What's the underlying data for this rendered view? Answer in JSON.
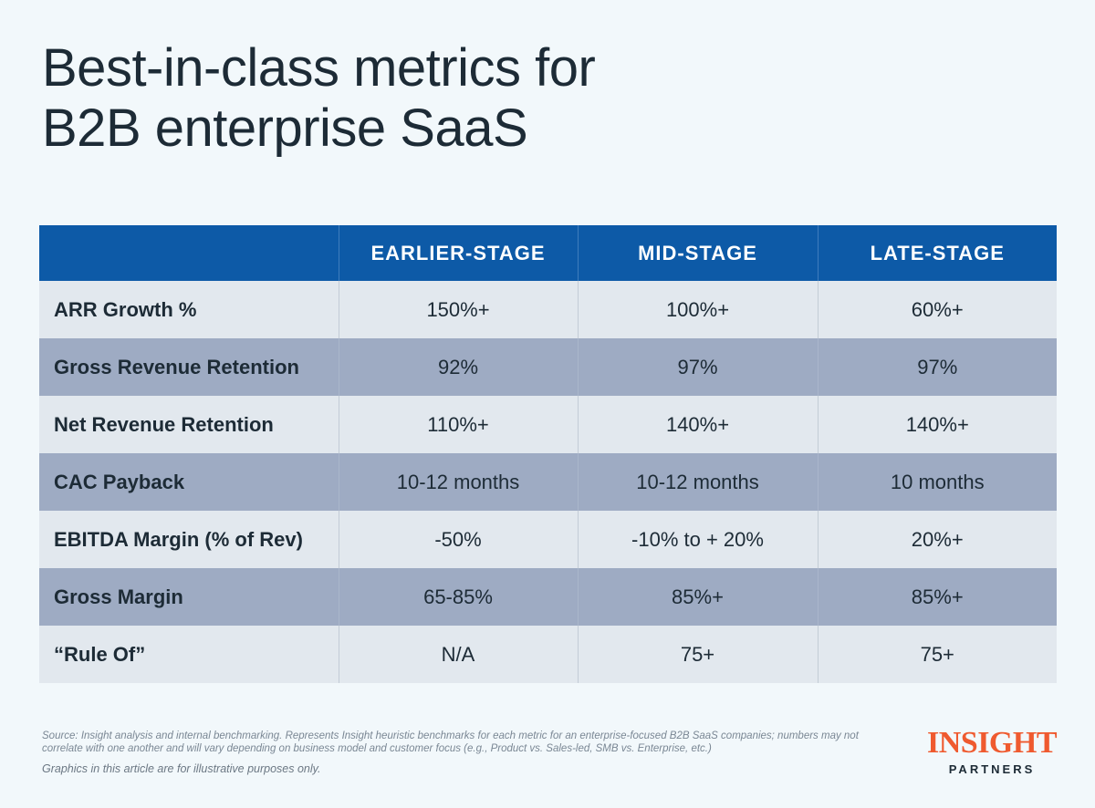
{
  "title": {
    "line1": "Best-in-class metrics for",
    "line2": "B2B enterprise SaaS"
  },
  "table": {
    "headers": [
      "",
      "EARLIER-STAGE",
      "MID-STAGE",
      "LATE-STAGE"
    ],
    "rows": [
      [
        "ARR Growth %",
        "150%+",
        "100%+",
        "60%+"
      ],
      [
        "Gross Revenue Retention",
        "92%",
        "97%",
        "97%"
      ],
      [
        "Net Revenue Retention",
        "110%+",
        "140%+",
        "140%+"
      ],
      [
        "CAC Payback",
        "10-12 months",
        "10-12 months",
        "10 months"
      ],
      [
        "EBITDA Margin (% of Rev)",
        "-50%",
        "-10% to + 20%",
        "20%+"
      ],
      [
        "Gross Margin",
        "65-85%",
        "85%+",
        "85%+"
      ],
      [
        "“Rule Of”",
        "N/A",
        "75+",
        "75+"
      ]
    ]
  },
  "footer": {
    "source": "Source: Insight analysis and internal benchmarking. Represents Insight heuristic benchmarks for each metric for an enterprise-focused B2B SaaS companies; numbers may not correlate with one another and will vary depending on business model and customer focus (e.g., Product vs. Sales-led, SMB vs. Enterprise, etc.)",
    "disclaimer": "Graphics in this article are for illustrative purposes only."
  },
  "logo": {
    "main": "INSIGHT",
    "sub": "PARTNERS"
  },
  "colors": {
    "header_bg": "#0d5aa7",
    "row_light": "#e2e8ee",
    "row_dark": "#9eabc3",
    "logo_orange": "#ef5a2f",
    "page_bg": "#f2f8fb"
  }
}
